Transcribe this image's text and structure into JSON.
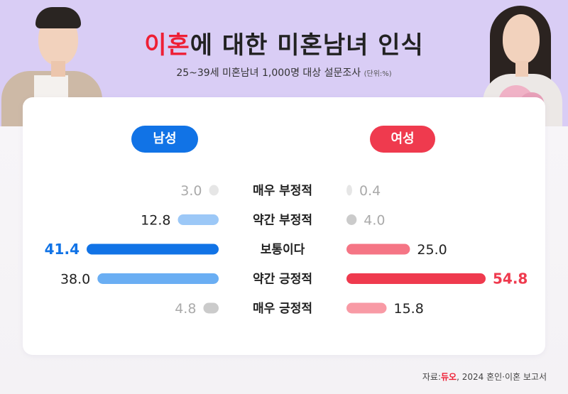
{
  "header": {
    "title_highlight": "이혼",
    "title_rest": "에 대한 미혼남녀 인식",
    "subtitle": "25~39세 미혼남녀 1,000명 대상 설문조사",
    "unit": "(단위:%)"
  },
  "chart_data": {
    "type": "bar",
    "categories": [
      "매우 부정적",
      "약간 부정적",
      "보통이다",
      "약간 긍정적",
      "매우 긍정적"
    ],
    "series": [
      {
        "name": "남성",
        "values": [
          3.0,
          12.8,
          41.4,
          38.0,
          4.8
        ],
        "colors": [
          "#e6e6e6",
          "#9cc8f7",
          "#1173e6",
          "#6aaef3",
          "#cbcbcb"
        ],
        "label_colors": [
          "#aaaaaa",
          "#222222",
          "#1173e6",
          "#222222",
          "#aaaaaa"
        ]
      },
      {
        "name": "여성",
        "values": [
          0.4,
          4.0,
          25.0,
          54.8,
          15.8
        ],
        "colors": [
          "#e6e6e6",
          "#cbcbcb",
          "#f57585",
          "#ef3a4e",
          "#f89aa5"
        ],
        "label_colors": [
          "#aaaaaa",
          "#aaaaaa",
          "#222222",
          "#ef3a4e",
          "#222222"
        ]
      }
    ],
    "bold_values": [
      "41.4",
      "54.8"
    ],
    "legend": "top",
    "colors": {
      "male_pill": "#1173e6",
      "female_pill": "#ef3a4e"
    }
  },
  "source": {
    "prefix": "자료:",
    "logo": "듀오",
    "text": ", 2024 혼인·이혼 보고서"
  }
}
